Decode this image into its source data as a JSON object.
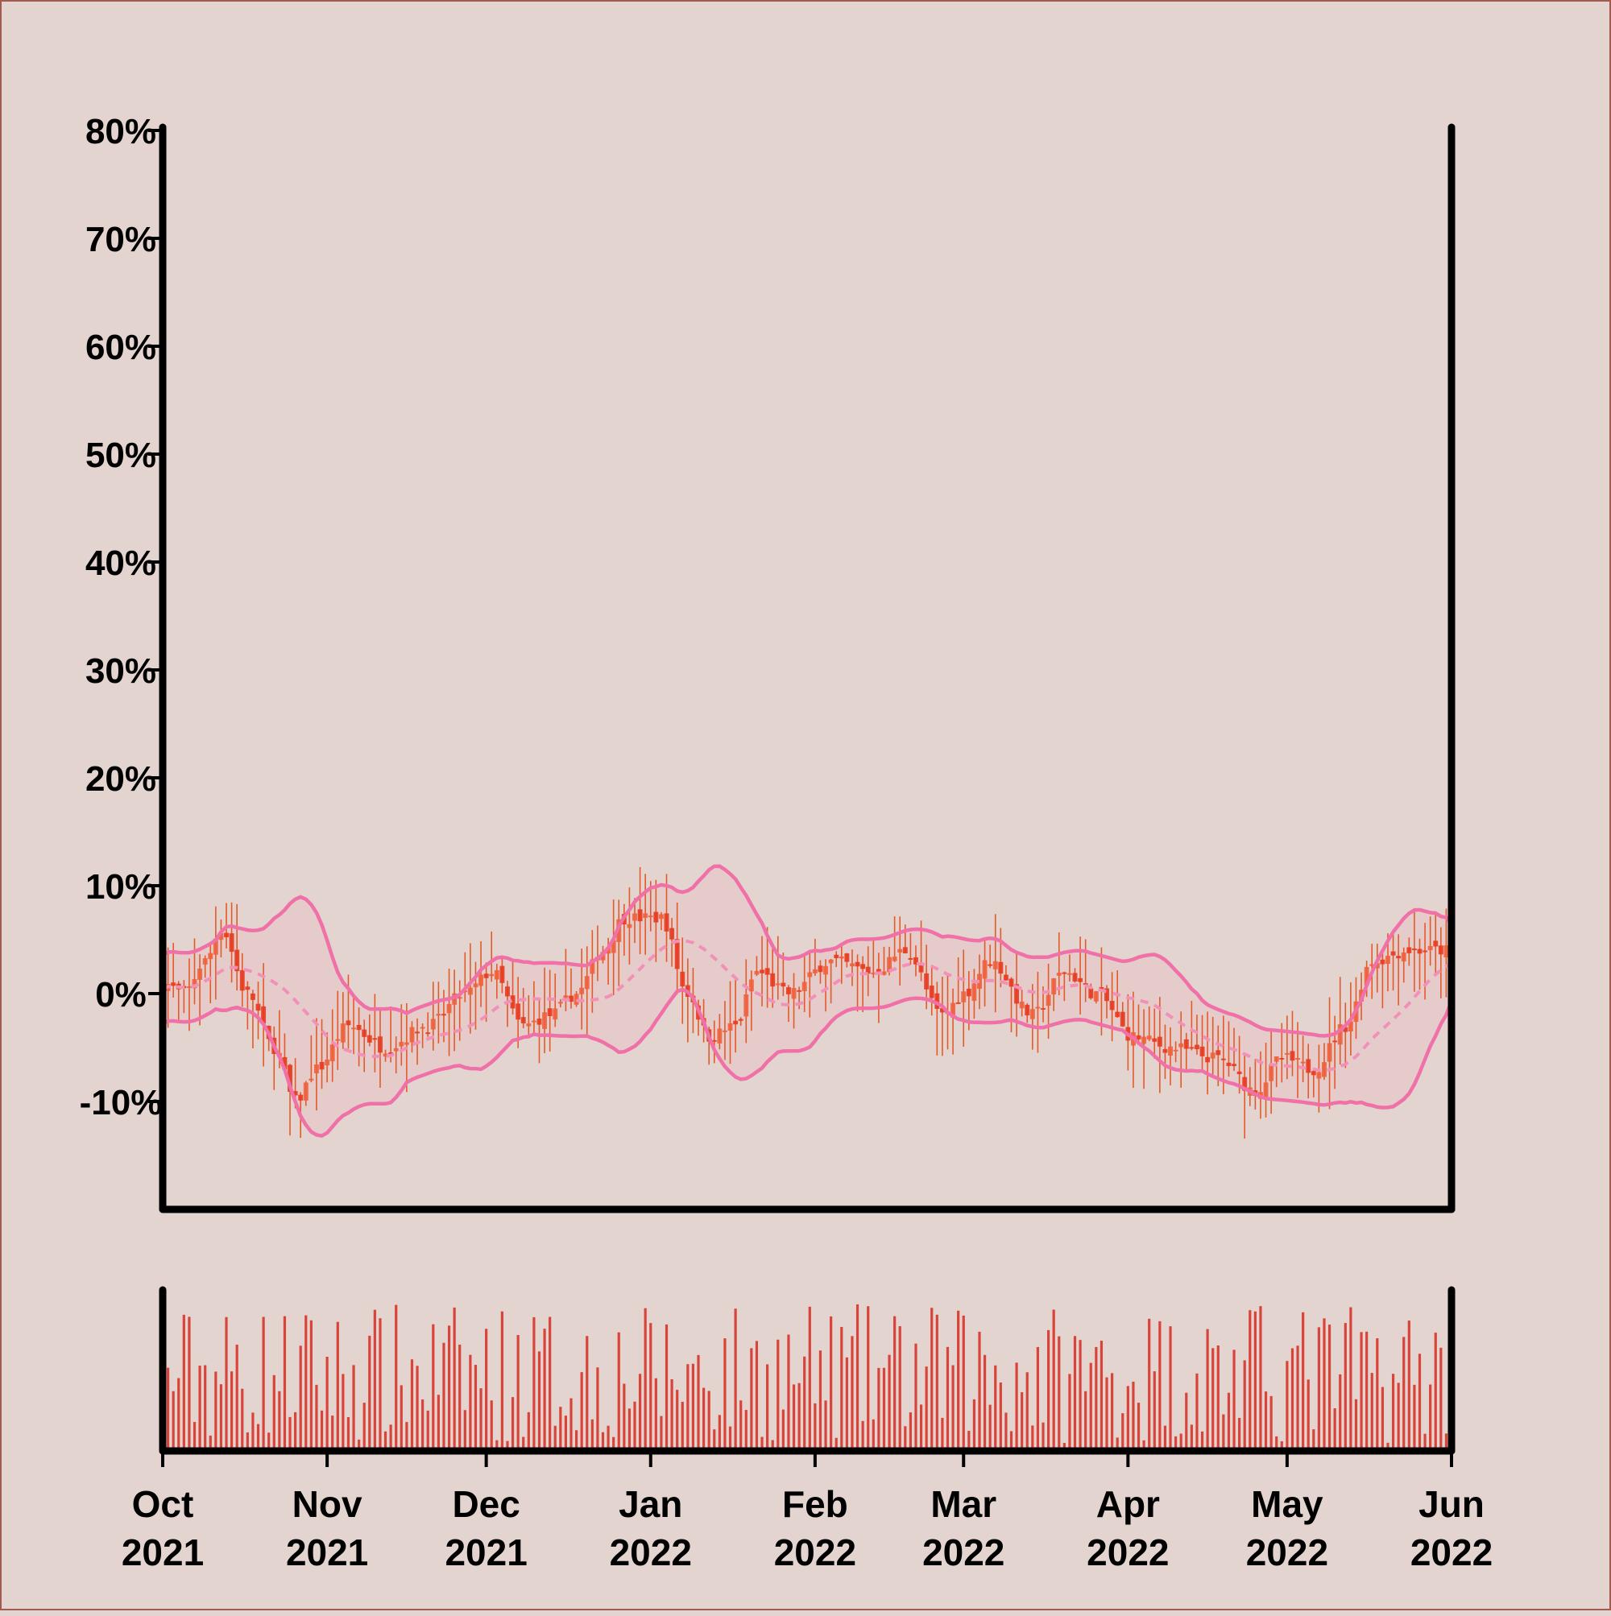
{
  "chart_data": {
    "type": "candlestick",
    "title": "",
    "xlabel": "",
    "ylabel": "",
    "ylim": [
      -20,
      80
    ],
    "yticks": [
      "80%",
      "70%",
      "60%",
      "50%",
      "40%",
      "30%",
      "20%",
      "10%",
      "0%",
      "-10%"
    ],
    "ytick_values": [
      80,
      70,
      60,
      50,
      40,
      30,
      20,
      10,
      0,
      -10
    ],
    "xlim": [
      "2021-10-01",
      "2022-06-01"
    ],
    "xticks": [
      {
        "date": "2021-10-01",
        "month": "Oct",
        "year": "2021"
      },
      {
        "date": "2021-11-01",
        "month": "Nov",
        "year": "2021"
      },
      {
        "date": "2021-12-01",
        "month": "Dec",
        "year": "2021"
      },
      {
        "date": "2022-01-01",
        "month": "Jan",
        "year": "2022"
      },
      {
        "date": "2022-02-01",
        "month": "Feb",
        "year": "2022"
      },
      {
        "date": "2022-03-01",
        "month": "Mar",
        "year": "2022"
      },
      {
        "date": "2022-04-01",
        "month": "Apr",
        "year": "2022"
      },
      {
        "date": "2022-05-01",
        "month": "May",
        "year": "2022"
      },
      {
        "date": "2022-06-01",
        "month": "Jun",
        "year": "2022"
      }
    ],
    "grid": false,
    "colors": {
      "up": "#f0603c",
      "down": "#e83a1e",
      "wick": "#e25a2a",
      "band": "#f070a8",
      "band_mid": "#f290b8",
      "volume": "#d9443a",
      "background": "#e4d4cf",
      "axis": "#000000"
    },
    "close_keypoints": [
      [
        "2021-10-01",
        1
      ],
      [
        "2021-10-05",
        0
      ],
      [
        "2021-10-09",
        3
      ],
      [
        "2021-10-12",
        6
      ],
      [
        "2021-10-17",
        0
      ],
      [
        "2021-10-22",
        -5
      ],
      [
        "2021-10-26",
        -10
      ],
      [
        "2021-10-30",
        -7
      ],
      [
        "2021-11-05",
        -3
      ],
      [
        "2021-11-12",
        -5
      ],
      [
        "2021-11-20",
        -3
      ],
      [
        "2021-11-27",
        0
      ],
      [
        "2021-12-02",
        2
      ],
      [
        "2021-12-08",
        -3
      ],
      [
        "2021-12-13",
        -2
      ],
      [
        "2021-12-18",
        0
      ],
      [
        "2021-12-23",
        4
      ],
      [
        "2021-12-27",
        7
      ],
      [
        "2022-01-03",
        7
      ],
      [
        "2022-01-08",
        0
      ],
      [
        "2022-01-12",
        -4
      ],
      [
        "2022-01-17",
        -3
      ],
      [
        "2022-01-21",
        2
      ],
      [
        "2022-01-27",
        0
      ],
      [
        "2022-02-04",
        3
      ],
      [
        "2022-02-12",
        2
      ],
      [
        "2022-02-18",
        4
      ],
      [
        "2022-02-25",
        -2
      ],
      [
        "2022-03-01",
        0
      ],
      [
        "2022-03-06",
        3
      ],
      [
        "2022-03-14",
        -2
      ],
      [
        "2022-03-20",
        2
      ],
      [
        "2022-03-26",
        0
      ],
      [
        "2022-04-02",
        -4
      ],
      [
        "2022-04-09",
        -5
      ],
      [
        "2022-04-18",
        -6
      ],
      [
        "2022-04-25",
        -9
      ],
      [
        "2022-04-30",
        -6
      ],
      [
        "2022-05-06",
        -7
      ],
      [
        "2022-05-12",
        -3
      ],
      [
        "2022-05-17",
        3
      ],
      [
        "2022-05-24",
        4
      ],
      [
        "2022-05-31",
        4
      ]
    ],
    "band_window_days": 20,
    "volume_range": [
      0,
      100
    ]
  }
}
